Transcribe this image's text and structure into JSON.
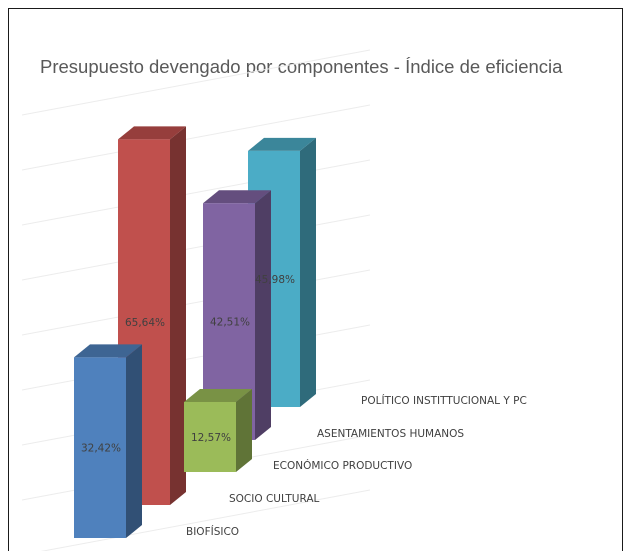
{
  "chart_data": {
    "type": "bar",
    "title": "Presupuesto devengado por componentes - Índice de eficiencia",
    "categories": [
      "BIOFÍSICO",
      "SOCIO CULTURAL",
      "ECONÓMICO PRODUCTIVO",
      "ASENTAMIENTOS HUMANOS",
      "POLÍTICO INSTITTUCIONAL Y PC"
    ],
    "values": [
      32.42,
      65.64,
      12.57,
      42.51,
      45.98
    ],
    "data_labels": [
      "32,42%",
      "65,64%",
      "12,57%",
      "42,51%",
      "45,98%"
    ],
    "colors": [
      "#4f81bd",
      "#c0504d",
      "#9bbb59",
      "#8064a2",
      "#4bacc6"
    ],
    "style": "3d-column",
    "grid": true,
    "legend": "none"
  }
}
